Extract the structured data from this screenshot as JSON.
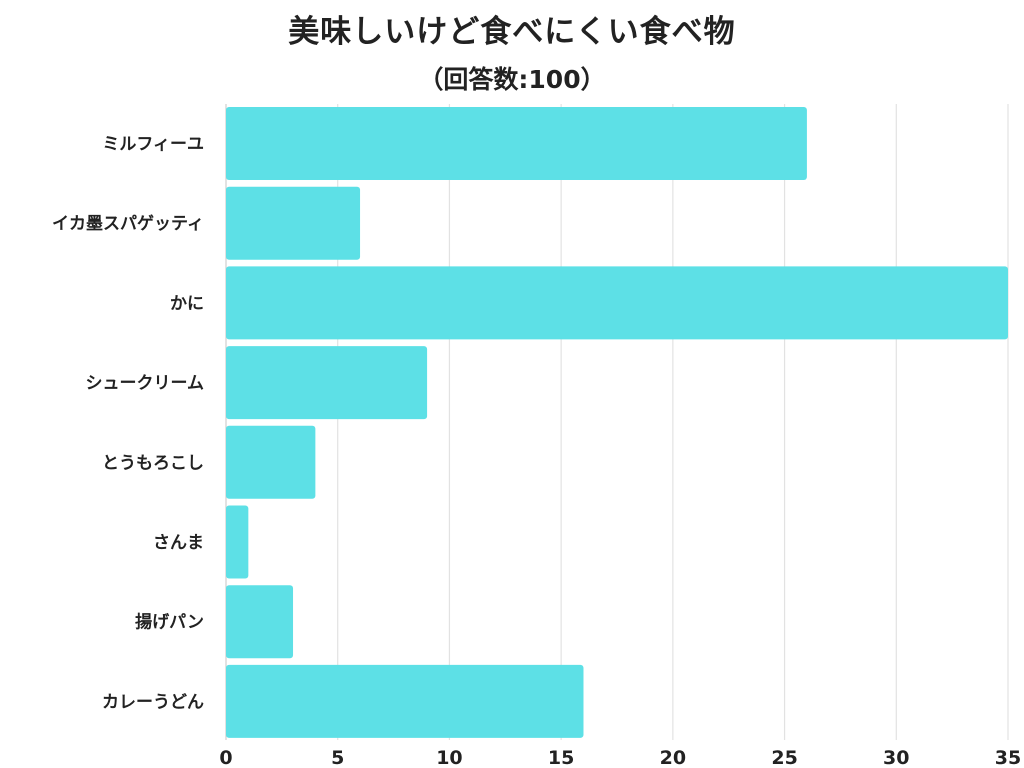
{
  "title": "美味しいけど食べにくい食べ物",
  "subtitle": "（回答数:100）",
  "colors": {
    "bar": "#5DE0E6",
    "grid": "#e2e2e2",
    "axis": "#cfcfcf",
    "text": "#222222"
  },
  "chart_data": {
    "type": "bar",
    "orientation": "horizontal",
    "title": "美味しいけど食べにくい食べ物",
    "subtitle": "（回答数:100）",
    "categories": [
      "ミルフィーユ",
      "イカ墨スパゲッティ",
      "かに",
      "シュークリーム",
      "とうもろこし",
      "さんま",
      "揚げパン",
      "カレーうどん"
    ],
    "values": [
      26,
      6,
      35,
      9,
      4,
      1,
      3,
      16
    ],
    "xlim": [
      0,
      35
    ],
    "ticks": [
      0,
      5,
      10,
      15,
      20,
      25,
      30,
      35
    ],
    "xlabel": "",
    "ylabel": "",
    "grid": "vertical",
    "legend": "none"
  }
}
